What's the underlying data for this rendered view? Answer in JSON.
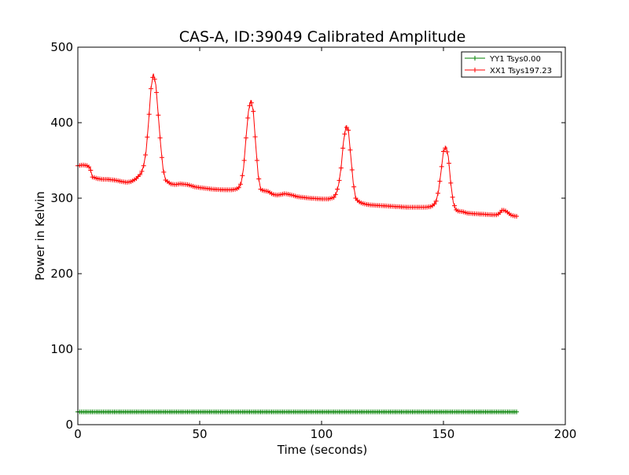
{
  "chart_data": {
    "type": "line",
    "title": "CAS-A, ID:39049 Calibrated Amplitude",
    "xlabel": "Time (seconds)",
    "ylabel": "Power in Kelvin",
    "xlim": [
      0,
      200
    ],
    "ylim": [
      0,
      500
    ],
    "x_ticks": [
      0,
      50,
      100,
      150,
      200
    ],
    "y_ticks": [
      0,
      100,
      200,
      300,
      400,
      500
    ],
    "grid": false,
    "legend_position": "top-right",
    "marker": "+",
    "series": [
      {
        "name": "YY1 Tsys0.00",
        "color": "#008000",
        "x": [
          0,
          10,
          30,
          50,
          70,
          90,
          110,
          130,
          150,
          170,
          180
        ],
        "y": [
          17,
          17,
          17,
          17,
          17,
          17,
          17,
          17,
          17,
          17,
          17
        ]
      },
      {
        "name": "XX1 Tsys197.23",
        "color": "#ff0000",
        "x": [
          0,
          2,
          4,
          5,
          6,
          8,
          10,
          12,
          15,
          18,
          20,
          22,
          24,
          26,
          27,
          28,
          29,
          30,
          31,
          32,
          33,
          34,
          35,
          36,
          38,
          40,
          42,
          45,
          48,
          50,
          55,
          60,
          63,
          65,
          66,
          67,
          68,
          69,
          70,
          71,
          72,
          73,
          74,
          75,
          76,
          78,
          80,
          82,
          85,
          88,
          90,
          95,
          100,
          103,
          105,
          106,
          107,
          108,
          109,
          110,
          111,
          112,
          113,
          114,
          115,
          116,
          118,
          120,
          125,
          130,
          135,
          140,
          143,
          145,
          146,
          147,
          148,
          149,
          150,
          151,
          152,
          153,
          154,
          155,
          156,
          158,
          160,
          165,
          170,
          172,
          173,
          174,
          175,
          176,
          178,
          180
        ],
        "y": [
          343,
          344,
          343,
          340,
          328,
          326,
          325,
          325,
          324,
          322,
          321,
          322,
          326,
          333,
          343,
          362,
          400,
          445,
          465,
          450,
          410,
          370,
          338,
          324,
          319,
          318,
          319,
          318,
          315,
          314,
          312,
          311,
          311,
          312,
          314,
          320,
          340,
          380,
          415,
          430,
          415,
          370,
          330,
          312,
          310,
          309,
          305,
          304,
          306,
          304,
          302,
          300,
          299,
          299,
          301,
          306,
          318,
          340,
          375,
          395,
          390,
          355,
          320,
          300,
          296,
          294,
          292,
          291,
          290,
          289,
          288,
          288,
          288,
          289,
          291,
          296,
          310,
          335,
          362,
          368,
          355,
          320,
          295,
          285,
          283,
          282,
          280,
          279,
          278,
          278,
          280,
          284,
          284,
          282,
          277,
          276
        ]
      }
    ]
  }
}
